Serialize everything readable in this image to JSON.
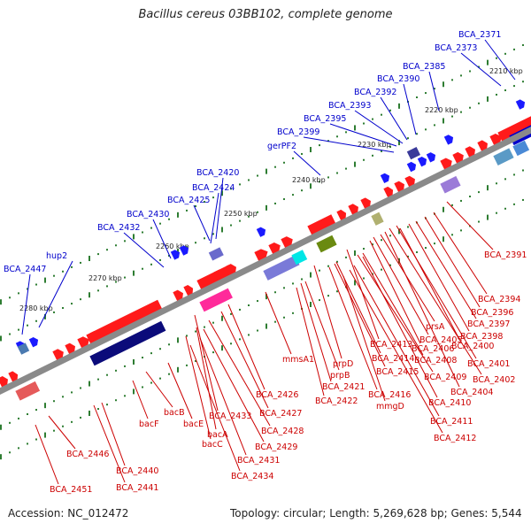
{
  "title": "Bacillus cereus 03BB102, complete genome",
  "footer": {
    "accession": "Accession: NC_012472",
    "summary": "Topology: circular; Length: 5,269,628 bp; Genes: 5,544"
  },
  "colors": {
    "backbone": "#7f7f7f",
    "forward_genes": "#ff0000",
    "reverse_genes_dark": "#00007f",
    "label_top": "#0000cc",
    "label_bottom": "#cc0000",
    "tick_major": "#2e7d32",
    "tick_minor": "#2e7d32"
  },
  "ticks": [
    "2210 kbp",
    "2220 kbp",
    "2230 kbp",
    "2240 kbp",
    "2250 kbp",
    "2260 kbp",
    "2270 kbp",
    "2280 kbp"
  ],
  "top_labels": [
    "BCA_2371",
    "BCA_2373",
    "BCA_2385",
    "BCA_2390",
    "BCA_2392",
    "BCA_2393",
    "BCA_2395",
    "BCA_2399",
    "gerPF2",
    "BCA_2420",
    "BCA_2424",
    "BCA_2425",
    "BCA_2430",
    "BCA_2432",
    "hup2",
    "BCA_2447"
  ],
  "bottom_labels": [
    "BCA_2391",
    "BCA_2394",
    "BCA_2396",
    "BCA_2397",
    "BCA_2398",
    "BCA_2400",
    "prsA",
    "BCA_2405",
    "BCA_2406",
    "BCA_2401",
    "BCA_2402",
    "BCA_2413",
    "BCA_2408",
    "BCA_2409",
    "BCA_2404",
    "BCA_2414",
    "BCA_2415",
    "BCA_2410",
    "prpD",
    "BCA_2416",
    "mmsA1",
    "prpB",
    "BCA_2421",
    "BCA_2411",
    "mmgD",
    "BCA_2422",
    "BCA_2412",
    "BCA_2426",
    "BCA_2427",
    "bacB",
    "BCA_2433",
    "BCA_2428",
    "bacE",
    "bacF",
    "bacA",
    "BCA_2429",
    "bacC",
    "BCA_2431",
    "BCA_2434",
    "BCA_2446",
    "BCA_2440",
    "BCA_2441",
    "BCA_2451"
  ]
}
